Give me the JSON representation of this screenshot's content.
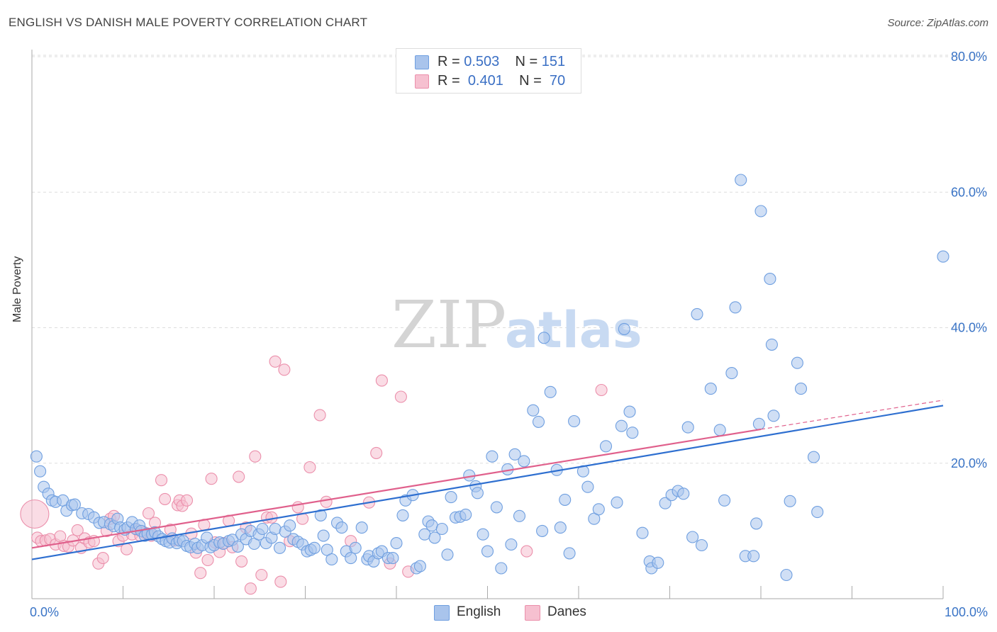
{
  "header": {
    "title": "ENGLISH VS DANISH MALE POVERTY CORRELATION CHART",
    "source": "Source: ZipAtlas.com"
  },
  "watermark": {
    "zip": "ZIP",
    "atlas": "atlas"
  },
  "colors": {
    "english_fill": "#a9c4ec",
    "english_stroke": "#6f9fe0",
    "english_line": "#2e6fd0",
    "danes_fill": "#f6c0d0",
    "danes_stroke": "#eb8fab",
    "danes_line": "#e0608c",
    "tick_label": "#3a74c6",
    "grid": "#dddddd"
  },
  "legend": {
    "rows": [
      {
        "r_label": "R = ",
        "r_value": "0.503",
        "n_label": "N = ",
        "n_value": "151"
      },
      {
        "r_label": "R = ",
        "r_value": "0.401",
        "n_label": "N = ",
        "n_value": "70"
      }
    ]
  },
  "bottom_legend": {
    "english": "English",
    "danes": "Danes"
  },
  "chart_data": {
    "type": "scatter",
    "title": "ENGLISH VS DANISH MALE POVERTY CORRELATION CHART",
    "xlabel": "",
    "ylabel": "Male Poverty",
    "xlim": [
      0,
      100
    ],
    "ylim": [
      0,
      82
    ],
    "x_tick_labels": [
      {
        "value": 0,
        "label": "0.0%"
      },
      {
        "value": 100,
        "label": "100.0%"
      }
    ],
    "y_tick_labels": [
      {
        "value": 20,
        "label": "20.0%"
      },
      {
        "value": 40,
        "label": "40.0%"
      },
      {
        "value": 60,
        "label": "60.0%"
      },
      {
        "value": 80,
        "label": "80.0%"
      }
    ],
    "grid": true,
    "legend_position": "top-center",
    "series": [
      {
        "name": "English",
        "r": 0.503,
        "n": 151,
        "trend": {
          "x": [
            0,
            100
          ],
          "y": [
            5.8,
            28.5
          ]
        },
        "points": [
          [
            0.5,
            21
          ],
          [
            0.9,
            18.8
          ],
          [
            1.3,
            16.5
          ],
          [
            1.8,
            15.5
          ],
          [
            2.2,
            14.5
          ],
          [
            2.6,
            14.3
          ],
          [
            3.4,
            14.5
          ],
          [
            3.8,
            13
          ],
          [
            4.4,
            13.8
          ],
          [
            4.7,
            13.9
          ],
          [
            5.5,
            12.6
          ],
          [
            6.2,
            12.5
          ],
          [
            6.8,
            12
          ],
          [
            7.4,
            11.2
          ],
          [
            7.9,
            11.3
          ],
          [
            8.6,
            11
          ],
          [
            9,
            10.7
          ],
          [
            9.4,
            11.8
          ],
          [
            9.7,
            10.5
          ],
          [
            10.2,
            10.2
          ],
          [
            10.5,
            10.5
          ],
          [
            11,
            11.3
          ],
          [
            11.4,
            10.3
          ],
          [
            11.8,
            10.8
          ],
          [
            12,
            10
          ],
          [
            12.4,
            9.3
          ],
          [
            12.7,
            9.6
          ],
          [
            13.2,
            9.5
          ],
          [
            13.5,
            9.8
          ],
          [
            13.9,
            9.2
          ],
          [
            14.3,
            8.8
          ],
          [
            14.7,
            8.5
          ],
          [
            15.1,
            8.3
          ],
          [
            15.4,
            8.9
          ],
          [
            15.9,
            8.2
          ],
          [
            16.2,
            8.6
          ],
          [
            16.6,
            8.5
          ],
          [
            17,
            7.8
          ],
          [
            17.4,
            7.6
          ],
          [
            17.9,
            8.1
          ],
          [
            18.2,
            7.5
          ],
          [
            18.7,
            7.9
          ],
          [
            19.2,
            9
          ],
          [
            19.6,
            7.6
          ],
          [
            20,
            7.9
          ],
          [
            20.6,
            8.3
          ],
          [
            21,
            8.1
          ],
          [
            21.6,
            8.5
          ],
          [
            22,
            8.7
          ],
          [
            22.6,
            7.7
          ],
          [
            23,
            9.5
          ],
          [
            23.5,
            8.8
          ],
          [
            24,
            10
          ],
          [
            24.4,
            8.1
          ],
          [
            24.9,
            9.5
          ],
          [
            25.3,
            10.3
          ],
          [
            25.7,
            8.2
          ],
          [
            26.3,
            9
          ],
          [
            26.7,
            10.3
          ],
          [
            27.2,
            7.5
          ],
          [
            27.8,
            9.9
          ],
          [
            28.3,
            10.8
          ],
          [
            28.7,
            8.8
          ],
          [
            29.2,
            8.4
          ],
          [
            29.7,
            8
          ],
          [
            30.2,
            7
          ],
          [
            30.6,
            7.2
          ],
          [
            31,
            7.5
          ],
          [
            31.7,
            12.3
          ],
          [
            32,
            9.3
          ],
          [
            32.4,
            7.2
          ],
          [
            32.9,
            5.8
          ],
          [
            33.5,
            11.2
          ],
          [
            34,
            10.5
          ],
          [
            34.5,
            7
          ],
          [
            35,
            6
          ],
          [
            35.5,
            7.5
          ],
          [
            36.2,
            10.5
          ],
          [
            36.8,
            5.8
          ],
          [
            37,
            6.3
          ],
          [
            37.5,
            5.5
          ],
          [
            38,
            6.7
          ],
          [
            38.4,
            7
          ],
          [
            39.1,
            6
          ],
          [
            39.6,
            6
          ],
          [
            40,
            8.2
          ],
          [
            40.7,
            12.3
          ],
          [
            41,
            14.5
          ],
          [
            41.8,
            15.3
          ],
          [
            42.2,
            4.5
          ],
          [
            42.6,
            4.8
          ],
          [
            43.1,
            9.5
          ],
          [
            43.5,
            11.4
          ],
          [
            43.9,
            10.8
          ],
          [
            44.2,
            9
          ],
          [
            45,
            10.3
          ],
          [
            45.6,
            6.5
          ],
          [
            46,
            15
          ],
          [
            46.5,
            12
          ],
          [
            47,
            12.1
          ],
          [
            47.6,
            12.4
          ],
          [
            48,
            18.2
          ],
          [
            48.7,
            16.6
          ],
          [
            48.9,
            15.6
          ],
          [
            49.5,
            9.5
          ],
          [
            50,
            7
          ],
          [
            50.5,
            21
          ],
          [
            51,
            13.5
          ],
          [
            51.5,
            4.5
          ],
          [
            52.2,
            19.1
          ],
          [
            52.6,
            8
          ],
          [
            53,
            21.3
          ],
          [
            53.5,
            12.2
          ],
          [
            54,
            20.3
          ],
          [
            55,
            27.8
          ],
          [
            55.6,
            26.1
          ],
          [
            56,
            10
          ],
          [
            56.2,
            38.5
          ],
          [
            56.9,
            30.5
          ],
          [
            57.6,
            19
          ],
          [
            58,
            10.5
          ],
          [
            58.5,
            14.6
          ],
          [
            59,
            6.7
          ],
          [
            59.5,
            26.2
          ],
          [
            60.5,
            18.8
          ],
          [
            61,
            16.5
          ],
          [
            61.7,
            11.8
          ],
          [
            62.2,
            13.2
          ],
          [
            63,
            22.5
          ],
          [
            64.2,
            14.2
          ],
          [
            64.7,
            25.5
          ],
          [
            65,
            39.8
          ],
          [
            65.6,
            27.6
          ],
          [
            65.9,
            24.5
          ],
          [
            67,
            9.7
          ],
          [
            67.8,
            5.5
          ],
          [
            68,
            4.5
          ],
          [
            68.7,
            5.3
          ],
          [
            69.5,
            14.1
          ],
          [
            70.2,
            15.3
          ],
          [
            70.9,
            15.9
          ],
          [
            71.5,
            15.5
          ],
          [
            72,
            25.3
          ],
          [
            72.5,
            9.1
          ],
          [
            73,
            42
          ],
          [
            73.5,
            7.9
          ],
          [
            74.5,
            31
          ],
          [
            75.5,
            24.9
          ],
          [
            76,
            14.5
          ],
          [
            76.8,
            33.3
          ],
          [
            77.2,
            43
          ],
          [
            77.8,
            61.8
          ],
          [
            78.3,
            6.3
          ],
          [
            79.2,
            6.3
          ],
          [
            79.5,
            11.1
          ],
          [
            79.8,
            25.8
          ],
          [
            80,
            57.2
          ],
          [
            81,
            47.2
          ],
          [
            81.2,
            37.5
          ],
          [
            81.4,
            27
          ],
          [
            82.8,
            3.5
          ],
          [
            83.2,
            14.4
          ],
          [
            84,
            34.8
          ],
          [
            84.4,
            31
          ],
          [
            85.8,
            20.9
          ],
          [
            86.2,
            12.8
          ],
          [
            100,
            50.5
          ]
        ]
      },
      {
        "name": "Danes",
        "r": 0.401,
        "n": 70,
        "trend": {
          "x": [
            0,
            80
          ],
          "y": [
            7.5,
            25
          ]
        },
        "trend_dashed": {
          "x": [
            80,
            100
          ],
          "y": [
            25,
            29.3
          ]
        },
        "points": [
          [
            0.3,
            12.5
          ],
          [
            0.6,
            9
          ],
          [
            1,
            8.5
          ],
          [
            1.5,
            8.6
          ],
          [
            2,
            8.8
          ],
          [
            2.6,
            8
          ],
          [
            3.1,
            9.2
          ],
          [
            3.5,
            7.8
          ],
          [
            4,
            7.7
          ],
          [
            4.5,
            8.6
          ],
          [
            5,
            10.1
          ],
          [
            5.4,
            7.5
          ],
          [
            5.8,
            8.9
          ],
          [
            6.3,
            8.3
          ],
          [
            6.8,
            8.5
          ],
          [
            7.3,
            5.2
          ],
          [
            7.8,
            6
          ],
          [
            8.2,
            10
          ],
          [
            8.6,
            11.8
          ],
          [
            9,
            12.2
          ],
          [
            9.5,
            8.5
          ],
          [
            10,
            9.3
          ],
          [
            10.4,
            7.3
          ],
          [
            11,
            9.5
          ],
          [
            11.5,
            10.2
          ],
          [
            11.9,
            9.3
          ],
          [
            12.3,
            9.8
          ],
          [
            12.8,
            12.6
          ],
          [
            13.1,
            9.3
          ],
          [
            13.5,
            11.2
          ],
          [
            14.2,
            17.5
          ],
          [
            14.6,
            14.7
          ],
          [
            15.2,
            10.2
          ],
          [
            15.6,
            8.6
          ],
          [
            16,
            13.8
          ],
          [
            16.2,
            14.5
          ],
          [
            16.5,
            13.7
          ],
          [
            17,
            14.5
          ],
          [
            17.5,
            9.6
          ],
          [
            18,
            6.8
          ],
          [
            18.5,
            3.8
          ],
          [
            18.9,
            10.9
          ],
          [
            19.3,
            5.7
          ],
          [
            19.7,
            17.7
          ],
          [
            20.1,
            8.3
          ],
          [
            20.6,
            6.9
          ],
          [
            21.1,
            8.2
          ],
          [
            21.6,
            11.5
          ],
          [
            22,
            7.6
          ],
          [
            22.7,
            18
          ],
          [
            23,
            5.5
          ],
          [
            23.5,
            10.5
          ],
          [
            24,
            1.5
          ],
          [
            24.5,
            21
          ],
          [
            25.2,
            3.5
          ],
          [
            25.8,
            12
          ],
          [
            26.3,
            12
          ],
          [
            26.7,
            35
          ],
          [
            27.3,
            2.5
          ],
          [
            27.7,
            33.8
          ],
          [
            28.3,
            8.5
          ],
          [
            29.2,
            13.5
          ],
          [
            29.7,
            11.8
          ],
          [
            30.5,
            19.4
          ],
          [
            31.6,
            27.1
          ],
          [
            32.3,
            14.3
          ],
          [
            35,
            8.5
          ],
          [
            37,
            14.2
          ],
          [
            37.8,
            21.5
          ],
          [
            38.4,
            32.2
          ],
          [
            39.3,
            5.2
          ],
          [
            40.5,
            29.8
          ],
          [
            41.3,
            4
          ],
          [
            54.3,
            7
          ],
          [
            62.5,
            30.8
          ]
        ]
      }
    ]
  }
}
